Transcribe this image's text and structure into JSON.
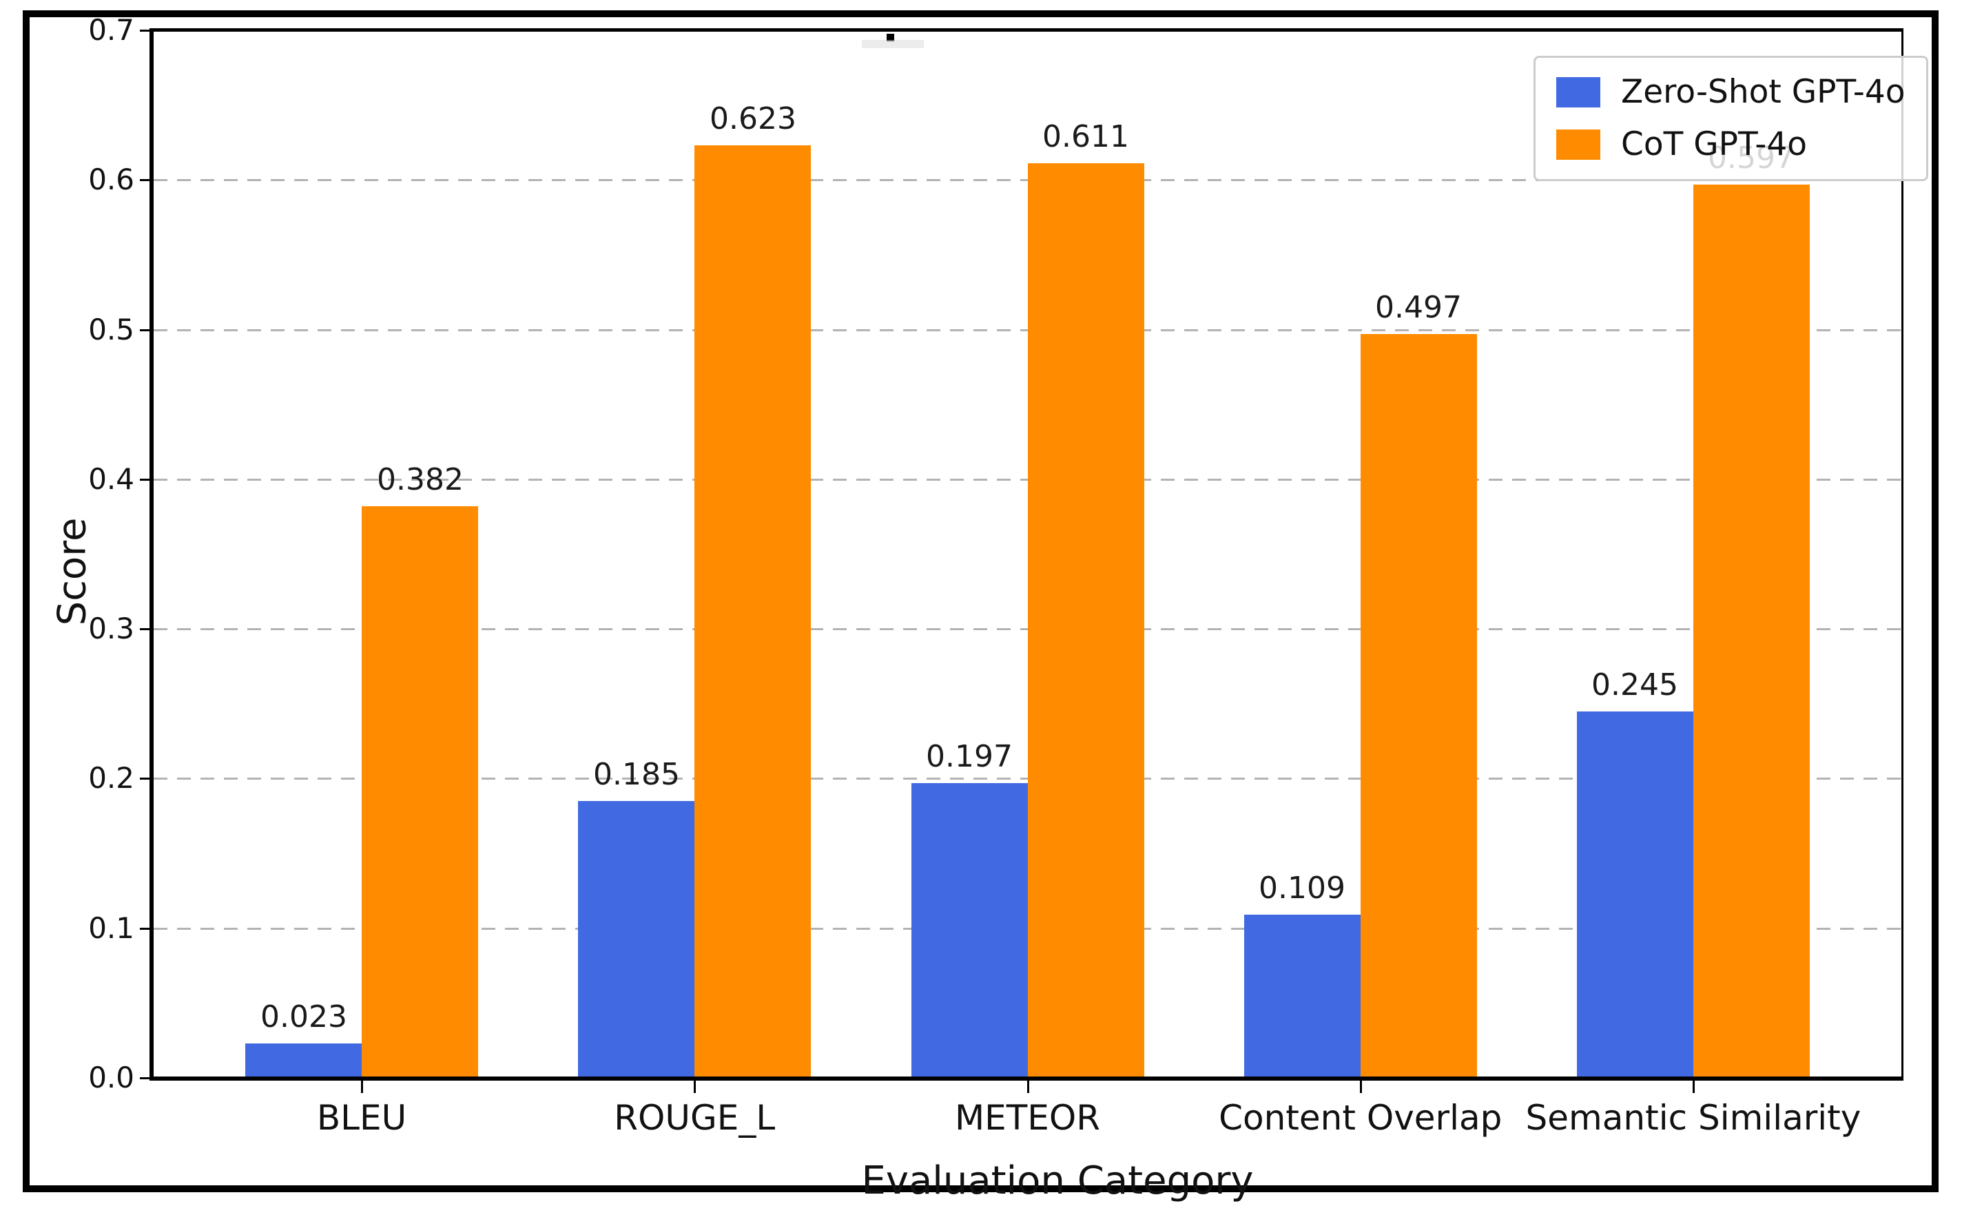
{
  "figure": {
    "background": "#ffffff",
    "frame_border_color": "#000000",
    "note": "title clipped off at top edge of screenshot"
  },
  "chart_data": {
    "type": "bar",
    "categories": [
      "BLEU",
      "ROUGE_L",
      "METEOR",
      "Content Overlap",
      "Semantic Similarity"
    ],
    "series": [
      {
        "name": "Zero-Shot GPT-4o",
        "color": "#4169E1",
        "values": [
          0.023,
          0.185,
          0.197,
          0.109,
          0.245
        ],
        "labels": [
          "0.023",
          "0.185",
          "0.197",
          "0.109",
          "0.245"
        ]
      },
      {
        "name": "CoT GPT-4o",
        "color": "#FF8C00",
        "values": [
          0.382,
          0.623,
          0.611,
          0.497,
          0.597
        ],
        "labels": [
          "0.382",
          "0.623",
          "0.611",
          "0.497",
          "0.597"
        ]
      }
    ],
    "xlabel": "Evaluation Category",
    "ylabel": "Score",
    "ylim": [
      0,
      0.7
    ],
    "yticks": [
      0.0,
      0.1,
      0.2,
      0.3,
      0.4,
      0.5,
      0.6,
      0.7
    ],
    "ytick_labels": [
      "0.0",
      "0.1",
      "0.2",
      "0.3",
      "0.4",
      "0.5",
      "0.6",
      "0.7"
    ],
    "grid": {
      "axis": "y",
      "style": "dashed",
      "color": "#b3b3b3"
    },
    "legend": {
      "position": "upper right",
      "border_color": "#cccccc",
      "background": "#ffffff"
    }
  }
}
